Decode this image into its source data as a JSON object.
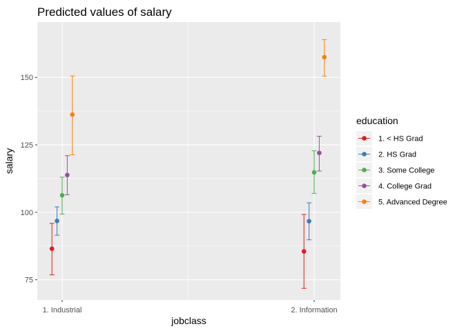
{
  "chart_data": {
    "type": "scatter",
    "title": "Predicted values of salary",
    "xlabel": "jobclass",
    "ylabel": "salary",
    "categories": [
      "1. Industrial",
      "2. Information"
    ],
    "ylim": [
      67.5,
      170.5
    ],
    "yticks": [
      75,
      100,
      125,
      150
    ],
    "grid": true,
    "legend": {
      "title": "education",
      "position": "right"
    },
    "series": [
      {
        "name": "1. < HS Grad",
        "color": "#e41a1c",
        "values": [
          86.5,
          85.5
        ],
        "lower": [
          76.8,
          71.8
        ],
        "upper": [
          95.9,
          99.2
        ]
      },
      {
        "name": "2. HS Grad",
        "color": "#377eb8",
        "values": [
          96.8,
          96.7
        ],
        "lower": [
          91.5,
          89.8
        ],
        "upper": [
          102.0,
          103.5
        ]
      },
      {
        "name": "3. Some College",
        "color": "#4daf4a",
        "values": [
          106.3,
          114.8
        ],
        "lower": [
          99.3,
          107.0
        ],
        "upper": [
          113.0,
          122.8
        ]
      },
      {
        "name": "4. College Grad",
        "color": "#984ea3",
        "values": [
          113.8,
          122.0
        ],
        "lower": [
          106.5,
          115.3
        ],
        "upper": [
          121.0,
          128.2
        ]
      },
      {
        "name": "5. Advanced Degree",
        "color": "#ff7f00",
        "values": [
          136.2,
          157.5
        ],
        "lower": [
          121.3,
          150.5
        ],
        "upper": [
          150.5,
          164.0
        ]
      }
    ]
  }
}
